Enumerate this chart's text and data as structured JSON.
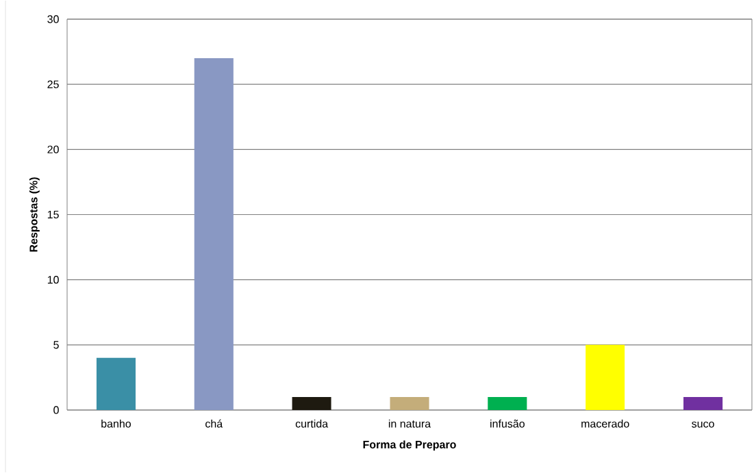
{
  "chart_data": {
    "type": "bar",
    "categories": [
      "banho",
      "chá",
      "curtida",
      "in natura",
      "infusão",
      "macerado",
      "suco"
    ],
    "values": [
      4,
      27,
      1,
      1,
      1,
      5,
      1
    ],
    "colors": [
      "#3a8fa6",
      "#8998c3",
      "#1e1a10",
      "#c4ad7a",
      "#00b050",
      "#ffff00",
      "#7030a0"
    ],
    "xlabel": "Forma de Preparo",
    "ylabel": "Respostas (%)",
    "ylim": [
      0,
      30
    ],
    "yticks": [
      0,
      5,
      10,
      15,
      20,
      25,
      30
    ],
    "grid": "y"
  }
}
